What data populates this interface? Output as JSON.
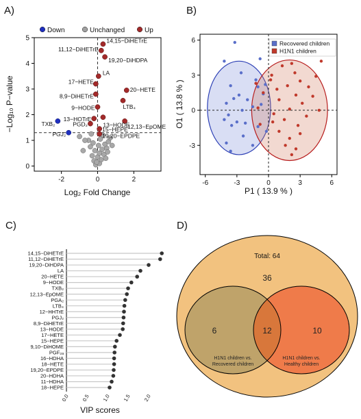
{
  "chart_data": [
    {
      "panel": "A)",
      "type": "scatter",
      "xlabel": "Log₂ Fold Change",
      "ylabel": "−Log₁₀ P−value",
      "xlim": [
        -3.5,
        3.5
      ],
      "ylim": [
        -0.2,
        5.0
      ],
      "xticks": [
        -2,
        0,
        2
      ],
      "yticks": [
        0,
        1,
        2,
        3,
        4,
        5
      ],
      "threshold_y": 1.3,
      "legend_position": "top",
      "legend": [
        {
          "label": "Down",
          "color": "#1f2fbf"
        },
        {
          "label": "Unchanged",
          "color": "#a0a0a0"
        },
        {
          "label": "Up",
          "color": "#a22a2a"
        }
      ],
      "up_points": [
        {
          "label": "14,15−DiHETrE",
          "x": 0.3,
          "y": 4.75
        },
        {
          "label": "11,12−DiHETrE",
          "x": 0.2,
          "y": 4.5
        },
        {
          "label": "19,20−DiHDPA",
          "x": 0.4,
          "y": 4.25
        },
        {
          "label": "LA",
          "x": 0.05,
          "y": 3.5
        },
        {
          "label": "17−HETE",
          "x": -0.1,
          "y": 3.2
        },
        {
          "label": "20−HETE",
          "x": 1.6,
          "y": 2.95
        },
        {
          "label": "8,9−DiHETrE",
          "x": -0.1,
          "y": 2.8
        },
        {
          "label": "LTB₄",
          "x": 1.4,
          "y": 2.55
        },
        {
          "label": "9−HODE",
          "x": 0.0,
          "y": 2.3
        },
        {
          "label": "13−HODE",
          "x": 0.3,
          "y": 1.9
        },
        {
          "label": "13−HOTrE",
          "x": -0.2,
          "y": 1.85
        },
        {
          "label": "12,13−EpOME",
          "x": 1.5,
          "y": 1.75
        },
        {
          "label": "PGD₂",
          "x": -0.4,
          "y": 1.65
        },
        {
          "label": "15−HEPE",
          "x": 0.1,
          "y": 1.45
        },
        {
          "label": "19,20−EPDPE",
          "x": 0.1,
          "y": 1.25
        }
      ],
      "down_points": [
        {
          "label": "TXB₂",
          "x": -2.2,
          "y": 1.75
        },
        {
          "label": "PGJ₂",
          "x": -1.6,
          "y": 1.3
        }
      ],
      "unchanged_points": [
        {
          "x": -0.1,
          "y": 0.05
        },
        {
          "x": 0.1,
          "y": 0.1
        },
        {
          "x": -0.2,
          "y": 0.2
        },
        {
          "x": 0.2,
          "y": 0.25
        },
        {
          "x": 0.0,
          "y": 0.35
        },
        {
          "x": -0.3,
          "y": 0.4
        },
        {
          "x": 0.35,
          "y": 0.45
        },
        {
          "x": 0.1,
          "y": 0.5
        },
        {
          "x": -0.15,
          "y": 0.6
        },
        {
          "x": 0.25,
          "y": 0.65
        },
        {
          "x": 0.5,
          "y": 0.7
        },
        {
          "x": -0.4,
          "y": 0.75
        },
        {
          "x": 0.05,
          "y": 0.8
        },
        {
          "x": 0.4,
          "y": 0.85
        },
        {
          "x": -0.25,
          "y": 0.9
        },
        {
          "x": 0.6,
          "y": 0.95
        },
        {
          "x": -0.5,
          "y": 1.0
        },
        {
          "x": 0.15,
          "y": 1.05
        },
        {
          "x": 0.7,
          "y": 1.1
        },
        {
          "x": -0.7,
          "y": 1.0
        },
        {
          "x": -1.0,
          "y": 1.15
        },
        {
          "x": 0.3,
          "y": 1.2
        },
        {
          "x": -0.35,
          "y": 1.25
        },
        {
          "x": 0.8,
          "y": 0.8
        },
        {
          "x": -0.8,
          "y": 0.6
        },
        {
          "x": 0.45,
          "y": 0.3
        },
        {
          "x": -0.05,
          "y": 0.15
        },
        {
          "x": 0.55,
          "y": 0.55
        }
      ]
    },
    {
      "panel": "B)",
      "type": "scatter",
      "xlabel": "P1 ( 13.9 % )",
      "ylabel": "O1 ( 13.8 % )",
      "xlim": [
        -6.5,
        6.5
      ],
      "ylim": [
        -5.5,
        6.5
      ],
      "xticks": [
        -6,
        -3,
        0,
        3,
        6
      ],
      "yticks": [
        -3,
        0,
        3,
        6
      ],
      "legend_position": "top-right",
      "series": [
        {
          "name": "Recovered children",
          "color": "#5a6fc9",
          "ellipse": {
            "cx": -2.8,
            "cy": 0.2,
            "rx": 3.0,
            "ry": 4.0
          },
          "points": [
            {
              "x": -3.2,
              "y": 5.8
            },
            {
              "x": -4.2,
              "y": 4.2
            },
            {
              "x": -0.8,
              "y": 4.4
            },
            {
              "x": -2.6,
              "y": 3.2
            },
            {
              "x": -1.2,
              "y": 2.6
            },
            {
              "x": -0.3,
              "y": 2.2
            },
            {
              "x": -3.6,
              "y": 2.1
            },
            {
              "x": -1.0,
              "y": 2.0
            },
            {
              "x": -0.5,
              "y": 1.4
            },
            {
              "x": -2.8,
              "y": 1.3
            },
            {
              "x": -3.3,
              "y": 1.0
            },
            {
              "x": -2.0,
              "y": 0.9
            },
            {
              "x": -4.0,
              "y": 0.6
            },
            {
              "x": -0.7,
              "y": 0.5
            },
            {
              "x": -1.5,
              "y": 0.3
            },
            {
              "x": -2.5,
              "y": 0.0
            },
            {
              "x": -3.8,
              "y": -0.4
            },
            {
              "x": -4.2,
              "y": -0.8
            },
            {
              "x": -3.0,
              "y": -1.0
            },
            {
              "x": -2.2,
              "y": -1.1
            },
            {
              "x": -3.5,
              "y": -1.3
            },
            {
              "x": -1.0,
              "y": -1.4
            },
            {
              "x": -0.2,
              "y": -1.8
            },
            {
              "x": -2.4,
              "y": -2.2
            },
            {
              "x": -4.0,
              "y": -2.8
            },
            {
              "x": -3.6,
              "y": -3.5
            },
            {
              "x": -1.5,
              "y": -3.0
            }
          ]
        },
        {
          "name": "H1N1 children",
          "color": "#c0392b",
          "ellipse": {
            "cx": 2.0,
            "cy": 0.0,
            "rx": 3.6,
            "ry": 4.3
          },
          "points": [
            {
              "x": 5.0,
              "y": 4.2
            },
            {
              "x": 2.2,
              "y": 4.0
            },
            {
              "x": 1.3,
              "y": 3.8
            },
            {
              "x": 2.5,
              "y": 3.2
            },
            {
              "x": 0.3,
              "y": 3.0
            },
            {
              "x": 4.5,
              "y": 2.9
            },
            {
              "x": 0.2,
              "y": 2.6
            },
            {
              "x": 3.0,
              "y": 2.5
            },
            {
              "x": -1.2,
              "y": 2.3
            },
            {
              "x": 1.8,
              "y": 2.1
            },
            {
              "x": 3.8,
              "y": 2.0
            },
            {
              "x": 0.8,
              "y": 1.8
            },
            {
              "x": -0.5,
              "y": 1.5
            },
            {
              "x": 2.6,
              "y": 1.3
            },
            {
              "x": 4.2,
              "y": 1.2
            },
            {
              "x": 1.0,
              "y": 0.9
            },
            {
              "x": 3.2,
              "y": 0.6
            },
            {
              "x": -1.0,
              "y": 0.2
            },
            {
              "x": 2.0,
              "y": 0.1
            },
            {
              "x": 4.8,
              "y": 0.0
            },
            {
              "x": 0.5,
              "y": -0.3
            },
            {
              "x": 3.6,
              "y": -0.5
            },
            {
              "x": 1.5,
              "y": -0.8
            },
            {
              "x": -0.8,
              "y": -1.2
            },
            {
              "x": 2.8,
              "y": -1.3
            },
            {
              "x": 1.0,
              "y": -1.8
            },
            {
              "x": 3.0,
              "y": -2.0
            },
            {
              "x": 2.0,
              "y": -2.4
            },
            {
              "x": 1.6,
              "y": -3.0
            },
            {
              "x": 2.6,
              "y": -3.3
            },
            {
              "x": 2.2,
              "y": -3.8
            },
            {
              "x": 0.4,
              "y": -1.0
            }
          ]
        }
      ]
    },
    {
      "panel": "C)",
      "type": "lollipop",
      "xlabel": "VIP scores",
      "xlim": [
        0.0,
        2.5
      ],
      "xticks": [
        "0.0",
        "0.5",
        "1.0",
        "1.5",
        "2.0"
      ],
      "categories": [
        "14,15−DiHETrE",
        "11,12−DiHETrE",
        "19,20−DiHDPA",
        "LA",
        "20−HETE",
        "9−HODE",
        "TXB₂",
        "12,13−EpOME",
        "PGA₂",
        "LTB₄",
        "12−HHTrE",
        "PGJ₂",
        "8,9−DiHETrE",
        "13−HODE",
        "17−HETE",
        "15−HEPE",
        "9,10−DiHOME",
        "PGF₂ₐ",
        "16−HDHA",
        "18−HETE",
        "19,20−EPDPE",
        "20−HDHA",
        "11−HDHA",
        "18−HEPE"
      ],
      "values": [
        2.32,
        2.28,
        2.0,
        1.8,
        1.72,
        1.58,
        1.5,
        1.47,
        1.43,
        1.41,
        1.4,
        1.39,
        1.38,
        1.37,
        1.3,
        1.22,
        1.18,
        1.17,
        1.16,
        1.16,
        1.15,
        1.14,
        1.1,
        1.05
      ]
    },
    {
      "panel": "D)",
      "type": "venn",
      "total_label": "Total: 64",
      "outside_count": "36",
      "left_only": "6",
      "intersection": "12",
      "right_only": "10",
      "left_label": [
        "H1N1 children vs.",
        "Recovered children"
      ],
      "right_label": [
        "H1N1 children vs.",
        "Healthy children"
      ],
      "colors": {
        "outer": "#f2c27f",
        "left": "#bfa36a",
        "right": "#ef7b4a",
        "overlap": "#d8773b"
      }
    }
  ]
}
